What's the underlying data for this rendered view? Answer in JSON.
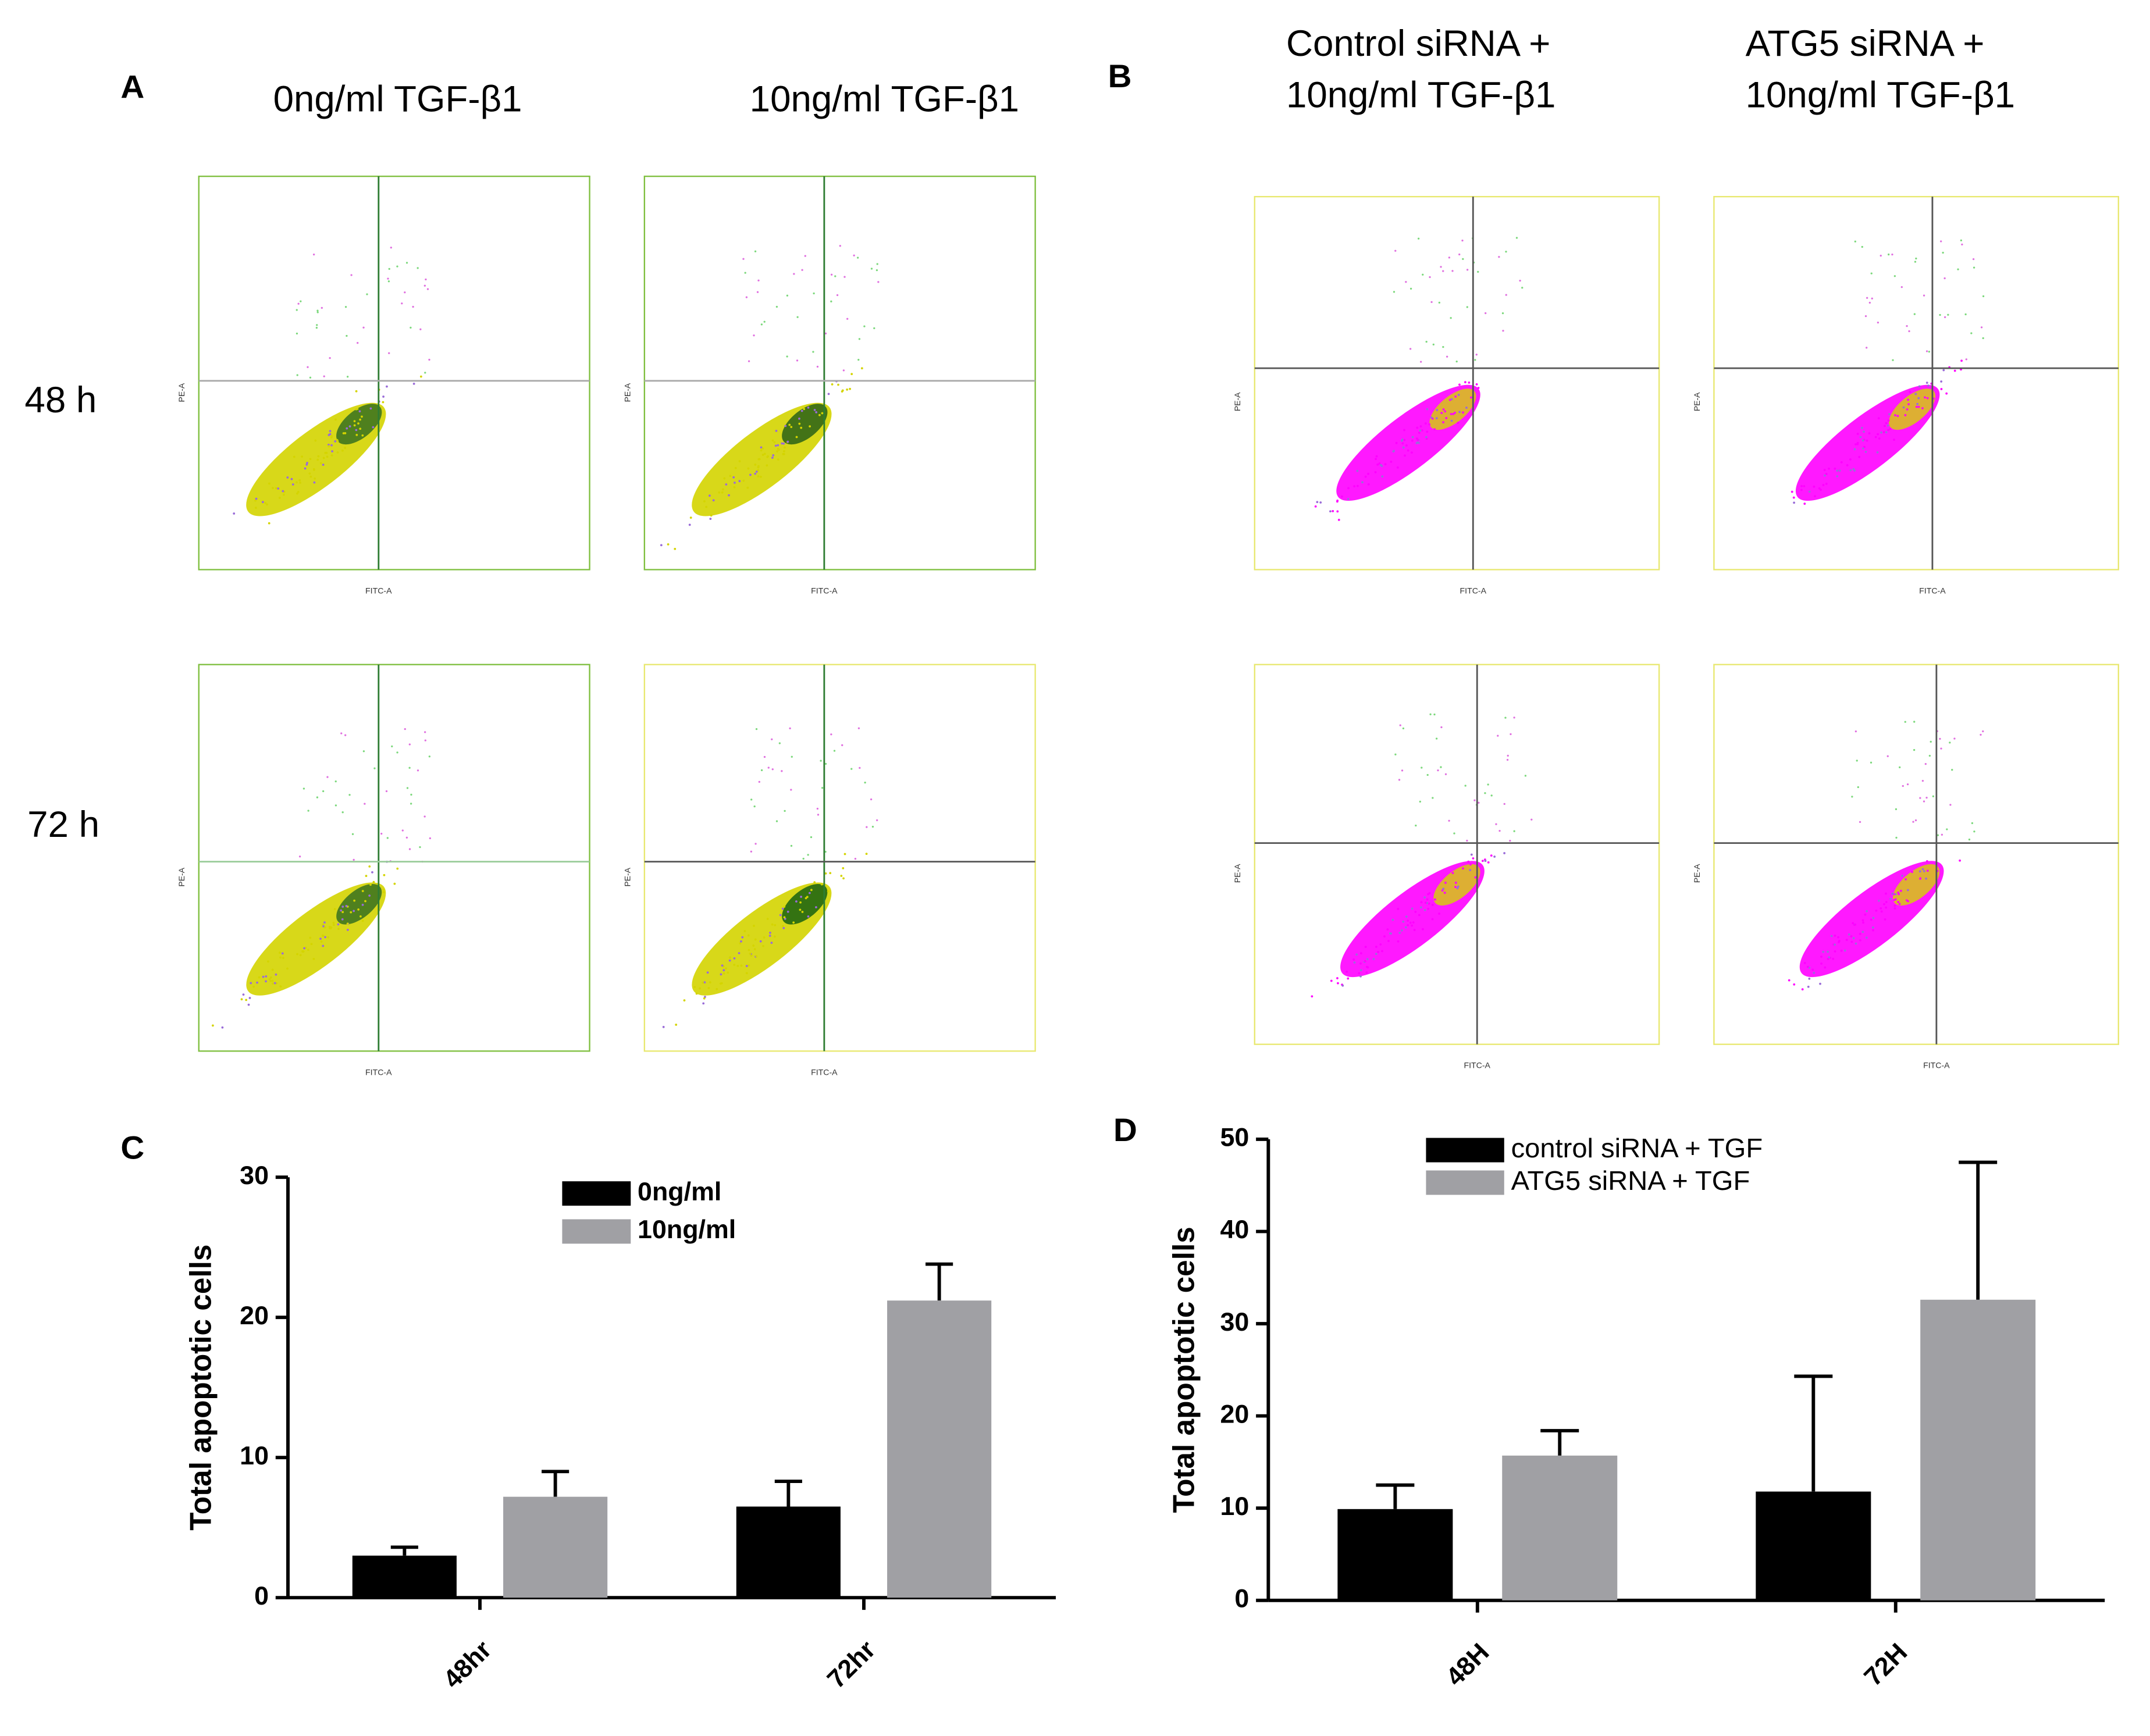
{
  "panels": {
    "a_letter": "A",
    "b_letter": "B",
    "c_letter": "C",
    "d_letter": "D",
    "a_col_0": "0ng/ml TGF-β1",
    "a_col_1": "10ng/ml TGF-β1",
    "b_col_0": [
      "Control siRNA +",
      "10ng/ml TGF-β1"
    ],
    "b_col_1": [
      "ATG5 siRNA +",
      "10ng/ml TGF-β1"
    ],
    "row_0": "48 h",
    "row_1": "72 h"
  },
  "flow": {
    "x_label": "FITC-A",
    "y_label": "PE-A"
  },
  "chart_data": [
    {
      "type": "bar",
      "y_label": "Total apoptotic cells",
      "categories": [
        "48hr",
        "72hr"
      ],
      "series": [
        {
          "name": "0ng/ml",
          "color": "#000000",
          "values": [
            3.0,
            6.5
          ],
          "errors": [
            0.6,
            1.8
          ]
        },
        {
          "name": "10ng/ml",
          "color": "#a0a0a4",
          "values": [
            7.2,
            21.2
          ],
          "errors": [
            1.8,
            2.6
          ]
        }
      ],
      "ylim": [
        0,
        30
      ],
      "yticks": [
        0,
        10,
        20,
        30
      ]
    },
    {
      "type": "bar",
      "y_label": "Total apoptotic cells",
      "categories": [
        "48H",
        "72H"
      ],
      "series": [
        {
          "name": "control siRNA + TGF",
          "color": "#000000",
          "values": [
            9.9,
            11.8
          ],
          "errors": [
            2.6,
            12.5
          ]
        },
        {
          "name": "ATG5 siRNA + TGF",
          "color": "#a0a0a4",
          "values": [
            15.7,
            32.6
          ],
          "errors": [
            2.7,
            14.9
          ]
        }
      ],
      "ylim": [
        0,
        50
      ],
      "yticks": [
        0,
        10,
        20,
        30,
        40,
        50
      ]
    }
  ]
}
